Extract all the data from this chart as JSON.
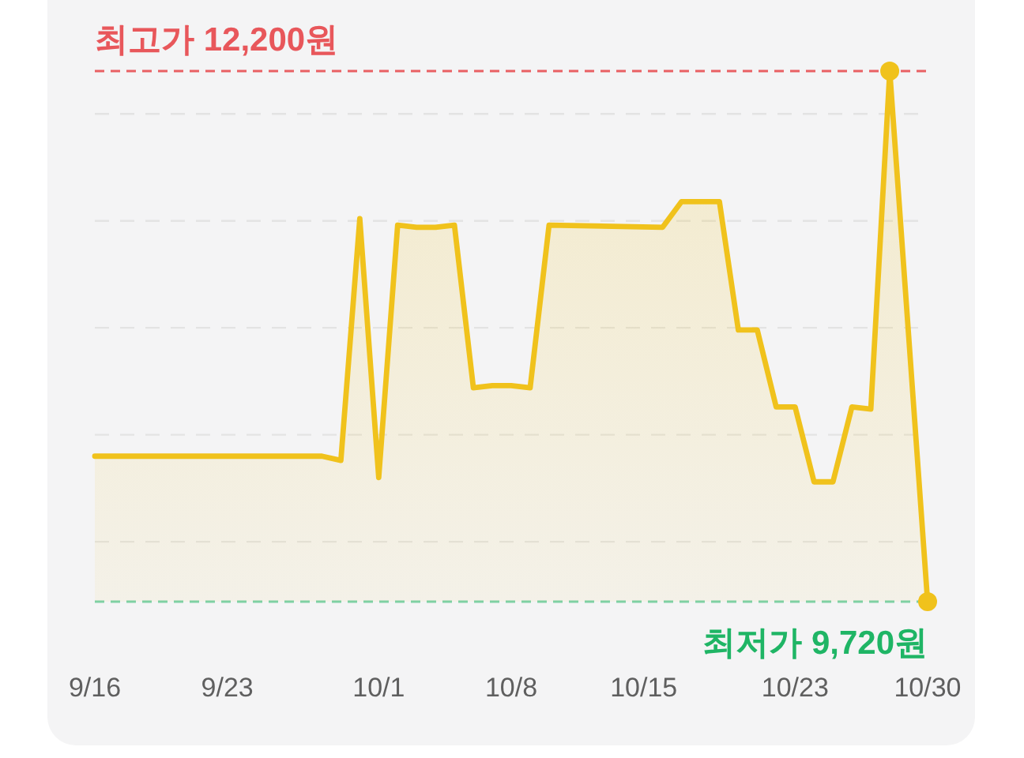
{
  "chart_data": {
    "type": "area",
    "series": [
      {
        "color": "#f0c21c",
        "x": [
          "--09-16",
          "--09-28",
          "--09-29",
          "--09-30",
          "--10-01",
          "--10-02",
          "--10-03",
          "--10-04",
          "--10-05",
          "--10-06",
          "--10-07",
          "--10-08",
          "--10-09",
          "--10-10",
          "--10-16",
          "--10-17",
          "--10-19",
          "--10-20",
          "--10-21",
          "--10-22",
          "--10-23",
          "--10-24",
          "--10-25",
          "--10-26",
          "--10-27",
          "--10-28",
          "--10-30"
        ],
        "values": [
          10400,
          10400,
          10380,
          11510,
          10300,
          11480,
          11470,
          11470,
          11480,
          10720,
          10730,
          10730,
          10720,
          11480,
          11470,
          11590,
          11590,
          10990,
          10990,
          10630,
          10630,
          10280,
          10280,
          10630,
          10620,
          12200,
          9720
        ]
      },
      {
        "type": "scatter",
        "color": "#f0c21c",
        "x": [
          "--10-28",
          "--10-30"
        ],
        "values": [
          12200,
          9720
        ]
      }
    ],
    "xlim": [
      "--09-16",
      "--10-30"
    ],
    "xticks": [
      {
        "value": "--09-16",
        "label": "9/16"
      },
      {
        "value": "--09-23",
        "label": "9/23"
      },
      {
        "value": "--10-01",
        "label": "10/1"
      },
      {
        "value": "--10-08",
        "label": "10/8"
      },
      {
        "value": "--10-15",
        "label": "10/15"
      },
      {
        "value": "--10-23",
        "label": "10/23"
      },
      {
        "value": "--10-30",
        "label": "10/30"
      }
    ],
    "ylim": [
      9720,
      12200
    ],
    "yticks": [
      {
        "value": 10000,
        "label": null
      },
      {
        "value": 10500,
        "label": null
      },
      {
        "value": 11000,
        "label": null
      },
      {
        "value": 11500,
        "label": null
      },
      {
        "value": 12000,
        "label": null
      }
    ],
    "grid": "y",
    "tick_labels": "x",
    "ref_lines": [
      {
        "axis": "y",
        "value": 12200,
        "label": "최고가 12,200원",
        "color": "#e8575b",
        "line_style": "dashed"
      },
      {
        "axis": "y",
        "value": 9720,
        "label": "최저가 9,720원",
        "color": "#1fb565",
        "line_style": "dashed"
      }
    ]
  }
}
